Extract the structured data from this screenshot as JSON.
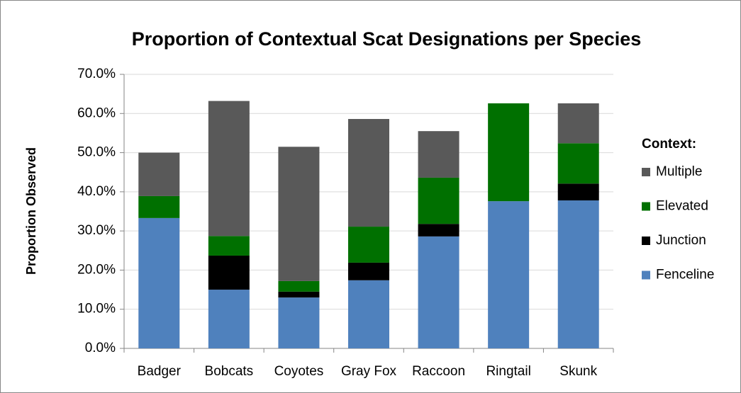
{
  "chart_data": {
    "type": "stacked_bar",
    "title": "Proportion of Contextual Scat Designations per Species",
    "y_label": "Proportion Observed",
    "legend_title": "Context:",
    "categories": [
      "Badger",
      "Bobcats",
      "Coyotes",
      "Gray Fox",
      "Raccoon",
      "Ringtail",
      "Skunk"
    ],
    "series": [
      {
        "name": "Fenceline",
        "color": "#4f81bd",
        "values": [
          33.3,
          15.0,
          13.0,
          17.4,
          28.6,
          37.6,
          37.8
        ]
      },
      {
        "name": "Junction",
        "color": "#000000",
        "values": [
          0,
          8.7,
          1.5,
          4.5,
          3.2,
          0,
          4.3
        ]
      },
      {
        "name": "Elevated",
        "color": "#007000",
        "values": [
          5.6,
          5.0,
          2.7,
          9.2,
          11.8,
          25.0,
          10.3
        ]
      },
      {
        "name": "Multiple",
        "color": "#595959",
        "values": [
          11.1,
          34.5,
          34.3,
          27.5,
          11.9,
          0,
          10.2
        ]
      }
    ],
    "ylim": [
      0,
      70
    ],
    "yticks": [
      {
        "value": 0,
        "label": "0.0%"
      },
      {
        "value": 10,
        "label": "10.0%"
      },
      {
        "value": 20,
        "label": "20.0%"
      },
      {
        "value": 30,
        "label": "30.0%"
      },
      {
        "value": 40,
        "label": "40.0%"
      },
      {
        "value": 50,
        "label": "50.0%"
      },
      {
        "value": 60,
        "label": "60.0%"
      },
      {
        "value": 70,
        "label": "70.0%"
      }
    ],
    "grid": true,
    "legend": "right"
  }
}
